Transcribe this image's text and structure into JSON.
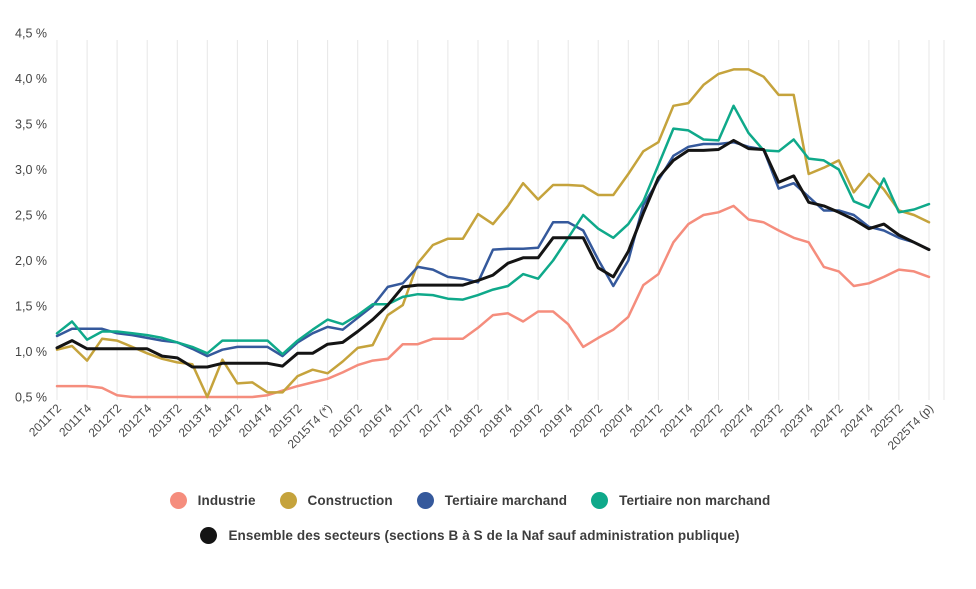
{
  "page": {
    "background": "#ffffff"
  },
  "chart_data": {
    "type": "line",
    "title": "",
    "unit": "%",
    "ylim": [
      0.5,
      4.5
    ],
    "grid": "vertical-only",
    "legend_position": "bottom-center",
    "y_ticks": [
      {
        "value": 4.5,
        "label": "4,5 %"
      },
      {
        "value": 4.0,
        "label": "4,0 %"
      },
      {
        "value": 3.5,
        "label": "3,5 %"
      },
      {
        "value": 3.0,
        "label": "3,0 %"
      },
      {
        "value": 2.5,
        "label": "2,5 %"
      },
      {
        "value": 2.0,
        "label": "2,0 %"
      },
      {
        "value": 1.5,
        "label": "1,5 %"
      },
      {
        "value": 1.0,
        "label": "1,0 %"
      },
      {
        "value": 0.5,
        "label": "0,5 %"
      }
    ],
    "x_tick_every": 2,
    "x_tick_labels": [
      "2011T2",
      "2011T4",
      "2012T2",
      "2012T4",
      "2013T2",
      "2013T4",
      "2014T2",
      "2014T4",
      "2015T2",
      "2015T4 (*)",
      "2016T2",
      "2016T4",
      "2017T2",
      "2017T4",
      "2018T2",
      "2018T4",
      "2019T2",
      "2019T4",
      "2020T2",
      "2020T4",
      "2021T2",
      "2021T4",
      "2022T2",
      "2022T4",
      "2023T2",
      "2023T4",
      "2024T2",
      "2024T4",
      "2025T2",
      "2025T4 (p)"
    ],
    "legend_rows": [
      [
        "industrie",
        "construction",
        "tertiaire_marchand",
        "tertiaire_non_marchand"
      ],
      [
        "ensemble"
      ]
    ],
    "series": [
      {
        "id": "industrie",
        "label": "Industrie",
        "color": "#f58d7d",
        "values": [
          0.62,
          0.62,
          0.62,
          0.6,
          0.52,
          0.5,
          0.5,
          0.5,
          0.5,
          0.5,
          0.5,
          0.5,
          0.5,
          0.5,
          0.52,
          0.57,
          0.62,
          0.66,
          0.7,
          0.77,
          0.85,
          0.9,
          0.92,
          1.08,
          1.08,
          1.14,
          1.14,
          1.14,
          1.26,
          1.4,
          1.42,
          1.33,
          1.44,
          1.44,
          1.3,
          1.05,
          1.15,
          1.24,
          1.38,
          1.73,
          1.85,
          2.2,
          2.4,
          2.5,
          2.53,
          2.6,
          2.45,
          2.42,
          2.33,
          2.25,
          2.2,
          1.93,
          1.88,
          1.72,
          1.75,
          1.82,
          1.9,
          1.88,
          1.82
        ]
      },
      {
        "id": "construction",
        "label": "Construction",
        "color": "#c5a33c",
        "values": [
          1.02,
          1.06,
          0.9,
          1.14,
          1.12,
          1.05,
          0.98,
          0.92,
          0.88,
          0.86,
          0.5,
          0.91,
          0.65,
          0.66,
          0.55,
          0.55,
          0.73,
          0.8,
          0.76,
          0.89,
          1.04,
          1.07,
          1.4,
          1.51,
          1.97,
          2.17,
          2.24,
          2.24,
          2.51,
          2.4,
          2.6,
          2.85,
          2.67,
          2.83,
          2.83,
          2.82,
          2.72,
          2.72,
          2.95,
          3.2,
          3.3,
          3.7,
          3.73,
          3.93,
          4.05,
          4.1,
          4.1,
          4.02,
          3.82,
          3.82,
          2.95,
          3.02,
          3.1,
          2.75,
          2.95,
          2.78,
          2.55,
          2.5,
          2.42
        ]
      },
      {
        "id": "tertiaire_marchand",
        "label": "Tertiaire marchand",
        "color": "#35599c",
        "values": [
          1.17,
          1.25,
          1.25,
          1.25,
          1.2,
          1.18,
          1.15,
          1.12,
          1.1,
          1.03,
          0.95,
          1.02,
          1.05,
          1.05,
          1.05,
          0.95,
          1.1,
          1.2,
          1.27,
          1.24,
          1.37,
          1.5,
          1.71,
          1.75,
          1.93,
          1.9,
          1.82,
          1.8,
          1.76,
          2.12,
          2.13,
          2.13,
          2.14,
          2.42,
          2.42,
          2.33,
          2.01,
          1.72,
          2.0,
          2.61,
          2.88,
          3.15,
          3.25,
          3.28,
          3.28,
          3.3,
          3.25,
          3.22,
          2.79,
          2.85,
          2.7,
          2.55,
          2.55,
          2.5,
          2.37,
          2.33,
          2.25,
          2.2,
          2.12
        ]
      },
      {
        "id": "tertiaire_non_marchand",
        "label": "Tertiaire non marchand",
        "color": "#0fa98a",
        "values": [
          1.2,
          1.33,
          1.13,
          1.22,
          1.22,
          1.2,
          1.18,
          1.15,
          1.1,
          1.05,
          0.98,
          1.12,
          1.12,
          1.12,
          1.12,
          0.97,
          1.12,
          1.24,
          1.35,
          1.3,
          1.4,
          1.52,
          1.52,
          1.6,
          1.63,
          1.62,
          1.58,
          1.57,
          1.62,
          1.68,
          1.72,
          1.85,
          1.8,
          2.0,
          2.25,
          2.5,
          2.35,
          2.25,
          2.4,
          2.65,
          3.05,
          3.45,
          3.43,
          3.33,
          3.32,
          3.7,
          3.4,
          3.21,
          3.2,
          3.33,
          3.12,
          3.1,
          3.0,
          2.65,
          2.58,
          2.9,
          2.53,
          2.56,
          2.62
        ]
      },
      {
        "id": "ensemble",
        "label": "Ensemble des secteurs (sections B à S de la Naf sauf administration publique)",
        "color": "#141414",
        "values": [
          1.04,
          1.12,
          1.03,
          1.03,
          1.03,
          1.03,
          1.03,
          0.95,
          0.93,
          0.83,
          0.83,
          0.87,
          0.87,
          0.87,
          0.87,
          0.84,
          0.98,
          0.98,
          1.08,
          1.1,
          1.22,
          1.35,
          1.51,
          1.71,
          1.73,
          1.73,
          1.73,
          1.73,
          1.78,
          1.84,
          1.97,
          2.03,
          2.03,
          2.25,
          2.25,
          2.25,
          1.92,
          1.82,
          2.1,
          2.52,
          2.91,
          3.1,
          3.21,
          3.21,
          3.22,
          3.32,
          3.23,
          3.22,
          2.86,
          2.93,
          2.64,
          2.6,
          2.53,
          2.45,
          2.35,
          2.4,
          2.28,
          2.2,
          2.12
        ]
      }
    ]
  }
}
